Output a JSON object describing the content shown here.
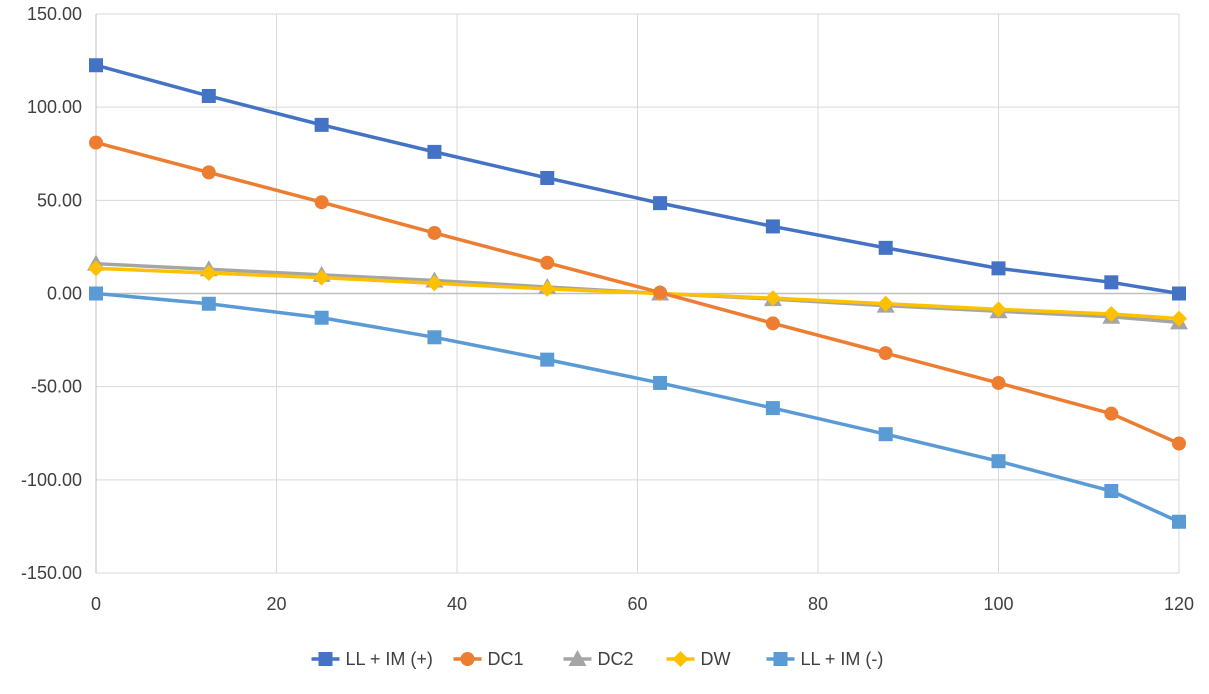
{
  "chart_data": {
    "type": "line",
    "title": "",
    "xlabel": "",
    "ylabel": "",
    "xlim": [
      0,
      120
    ],
    "ylim": [
      -150,
      150
    ],
    "x_ticks": [
      0,
      20,
      40,
      60,
      80,
      100,
      120
    ],
    "x_tick_labels": [
      "0",
      "20",
      "40",
      "60",
      "80",
      "100",
      "120"
    ],
    "y_ticks": [
      150,
      100,
      50,
      0,
      -50,
      -100,
      -150
    ],
    "y_tick_labels": [
      "150.00",
      "100.00",
      "50.00",
      "0.00",
      "-50.00",
      "-100.00",
      "-150.00"
    ],
    "grid": true,
    "legend_position": "bottom",
    "x": [
      0,
      12.5,
      25,
      37.5,
      50,
      62.5,
      75,
      87.5,
      100,
      112.5,
      120
    ],
    "series": [
      {
        "name": "LL + IM (+)",
        "color": "#4472C4",
        "marker": "square",
        "values": [
          122.5,
          106.0,
          90.5,
          76.0,
          62.0,
          48.5,
          36.0,
          24.5,
          13.5,
          6.0,
          0.0
        ]
      },
      {
        "name": "DC1",
        "color": "#ED7D31",
        "marker": "circle",
        "values": [
          81.0,
          65.0,
          49.0,
          32.5,
          16.5,
          0.5,
          -16.0,
          -32.0,
          -48.0,
          -64.5,
          -80.5
        ]
      },
      {
        "name": "DC2",
        "color": "#A5A5A5",
        "marker": "triangle",
        "values": [
          16.0,
          13.0,
          10.0,
          7.0,
          3.5,
          0.0,
          -3.0,
          -6.5,
          -9.5,
          -12.5,
          -15.5
        ]
      },
      {
        "name": "DW",
        "color": "#FFC000",
        "marker": "diamond",
        "values": [
          13.5,
          11.0,
          8.5,
          5.5,
          2.5,
          0.0,
          -2.5,
          -5.5,
          -8.5,
          -11.0,
          -13.5
        ]
      },
      {
        "name": "LL + IM (-)",
        "color": "#5B9BD5",
        "marker": "square",
        "values": [
          0.0,
          -5.5,
          -13.0,
          -23.5,
          -35.5,
          -48.0,
          -61.5,
          -75.5,
          -90.0,
          -106.0,
          -122.5
        ]
      }
    ]
  }
}
